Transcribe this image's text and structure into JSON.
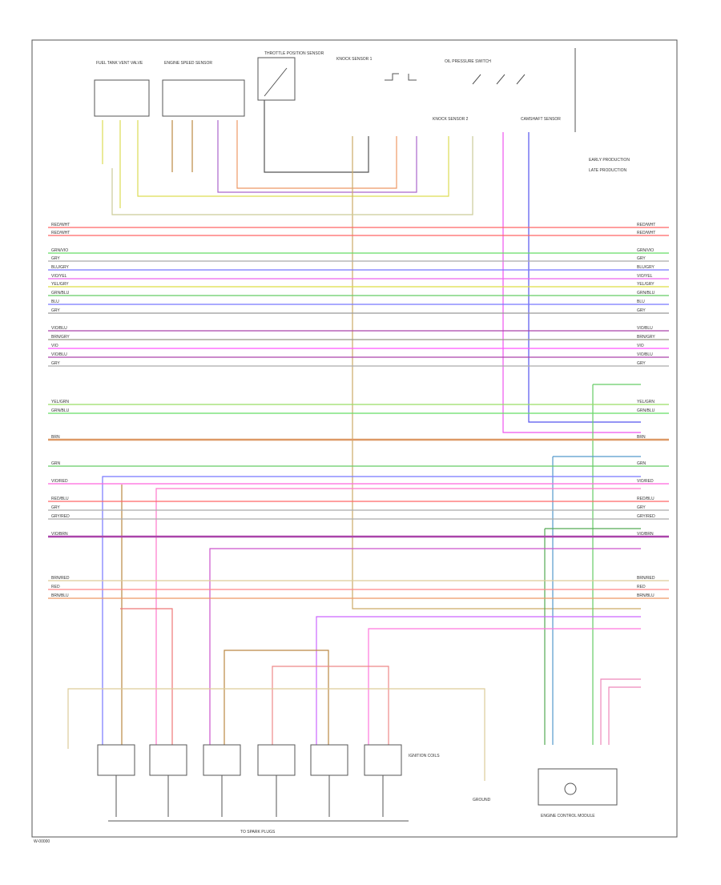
{
  "legend": [
    "EARLY PRODUCTION",
    "LATE PRODUCTION"
  ],
  "components": [
    {
      "label": "FUEL TANK VENT VALVE"
    },
    {
      "label": "ENGINE SPEED SENSOR"
    },
    {
      "label": "THROTTLE POSITION SENSOR"
    },
    {
      "label": "KNOCK SENSOR 1"
    },
    {
      "label": "KNOCK SENSOR 2"
    },
    {
      "label": "OIL PRESSURE SWITCH"
    },
    {
      "label": "CAMSHAFT SENSOR"
    },
    {
      "label": "IGNITION COILS"
    },
    {
      "label": "GROUND"
    },
    {
      "label": "ENGINE CONTROL MODULE"
    }
  ],
  "wires": [
    {
      "label": "RED/WHT"
    },
    {
      "label": "RED/WHT"
    },
    {
      "label": "GRN/VIO"
    },
    {
      "label": "GRY"
    },
    {
      "label": "BLU/GRY"
    },
    {
      "label": "VIO/YEL"
    },
    {
      "label": "YEL/GRY"
    },
    {
      "label": "GRN/BLU"
    },
    {
      "label": "BLU"
    },
    {
      "label": "GRY"
    },
    {
      "label": "VIO/BLU"
    },
    {
      "label": "BRN/GRY"
    },
    {
      "label": "VIO"
    },
    {
      "label": "VIO/BLU"
    },
    {
      "label": "GRY"
    },
    {
      "label": "YEL/GRN"
    },
    {
      "label": "GRN/BLU"
    },
    {
      "label": "BRN"
    },
    {
      "label": "GRN"
    },
    {
      "label": "VIO/RED"
    },
    {
      "label": "RED/BLU"
    },
    {
      "label": "GRY"
    },
    {
      "label": "GRY/RED"
    },
    {
      "label": "VIO/BRN"
    },
    {
      "label": "BRN/RED"
    },
    {
      "label": "RED"
    },
    {
      "label": "BRN/BLU"
    }
  ],
  "bottom_label": "TO SPARK PLUGS",
  "footer": "W-00000"
}
